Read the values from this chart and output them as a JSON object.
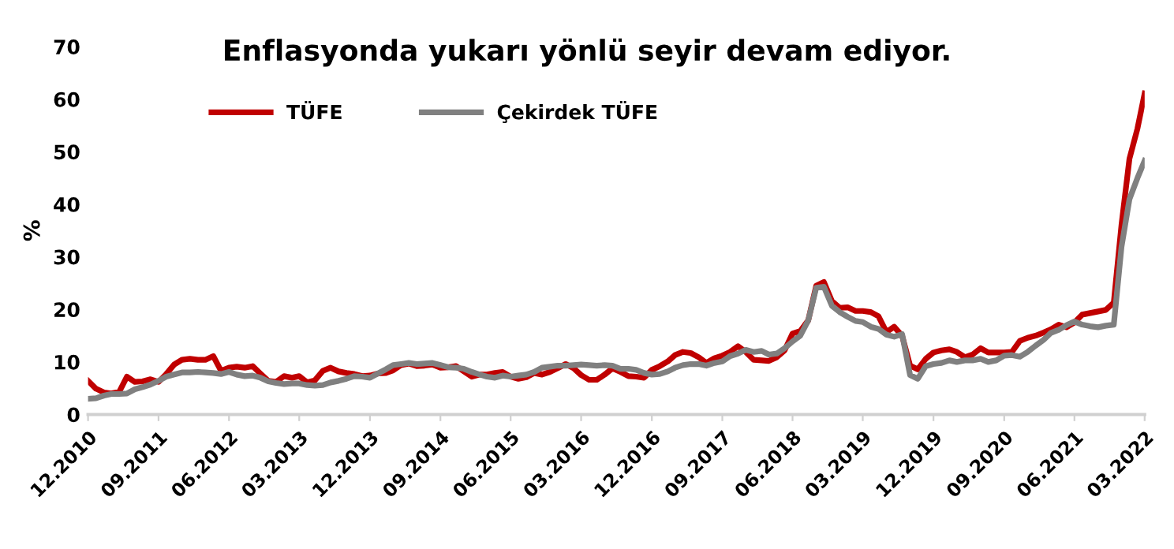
{
  "chart_data": {
    "type": "line",
    "title": "Enflasyonda yukarı yönlü seyir devam ediyor.",
    "ylabel": "%",
    "x": [
      "2010-12",
      "2011-01",
      "2011-02",
      "2011-03",
      "2011-04",
      "2011-05",
      "2011-06",
      "2011-07",
      "2011-08",
      "2011-09",
      "2011-10",
      "2011-11",
      "2011-12",
      "2012-01",
      "2012-02",
      "2012-03",
      "2012-04",
      "2012-05",
      "2012-06",
      "2012-07",
      "2012-08",
      "2012-09",
      "2012-10",
      "2012-11",
      "2012-12",
      "2013-01",
      "2013-02",
      "2013-03",
      "2013-04",
      "2013-05",
      "2013-06",
      "2013-07",
      "2013-08",
      "2013-09",
      "2013-10",
      "2013-11",
      "2013-12",
      "2014-01",
      "2014-02",
      "2014-03",
      "2014-04",
      "2014-05",
      "2014-06",
      "2014-07",
      "2014-08",
      "2014-09",
      "2014-10",
      "2014-11",
      "2014-12",
      "2015-01",
      "2015-02",
      "2015-03",
      "2015-04",
      "2015-05",
      "2015-06",
      "2015-07",
      "2015-08",
      "2015-09",
      "2015-10",
      "2015-11",
      "2015-12",
      "2016-01",
      "2016-02",
      "2016-03",
      "2016-04",
      "2016-05",
      "2016-06",
      "2016-07",
      "2016-08",
      "2016-09",
      "2016-10",
      "2016-11",
      "2016-12",
      "2017-01",
      "2017-02",
      "2017-03",
      "2017-04",
      "2017-05",
      "2017-06",
      "2017-07",
      "2017-08",
      "2017-09",
      "2017-10",
      "2017-11",
      "2017-12",
      "2018-01",
      "2018-02",
      "2018-03",
      "2018-04",
      "2018-05",
      "2018-06",
      "2018-07",
      "2018-08",
      "2018-09",
      "2018-10",
      "2018-11",
      "2018-12",
      "2019-01",
      "2019-02",
      "2019-03",
      "2019-04",
      "2019-05",
      "2019-06",
      "2019-07",
      "2019-08",
      "2019-09",
      "2019-10",
      "2019-11",
      "2019-12",
      "2020-01",
      "2020-02",
      "2020-03",
      "2020-04",
      "2020-05",
      "2020-06",
      "2020-07",
      "2020-08",
      "2020-09",
      "2020-10",
      "2020-11",
      "2020-12",
      "2021-01",
      "2021-02",
      "2021-03",
      "2021-04",
      "2021-05",
      "2021-06",
      "2021-07",
      "2021-08",
      "2021-09",
      "2021-10",
      "2021-11",
      "2021-12",
      "2022-01",
      "2022-02",
      "2022-03"
    ],
    "series": [
      {
        "name": "TÜFE",
        "color": "#c00000",
        "values": [
          6.4,
          4.9,
          4.2,
          4.0,
          4.3,
          7.2,
          6.2,
          6.3,
          6.7,
          6.2,
          7.7,
          9.5,
          10.4,
          10.6,
          10.4,
          10.4,
          11.1,
          8.3,
          8.9,
          9.1,
          8.9,
          9.2,
          7.8,
          6.4,
          6.2,
          7.3,
          7.0,
          7.3,
          6.1,
          6.5,
          8.3,
          8.9,
          8.2,
          7.9,
          7.7,
          7.3,
          7.4,
          7.8,
          7.9,
          8.4,
          9.4,
          9.7,
          9.2,
          9.3,
          9.5,
          8.9,
          9.0,
          9.2,
          8.2,
          7.2,
          7.6,
          7.6,
          7.9,
          8.1,
          7.2,
          6.8,
          7.1,
          7.9,
          7.6,
          8.1,
          8.8,
          9.6,
          8.8,
          7.5,
          6.6,
          6.6,
          7.6,
          8.8,
          8.1,
          7.3,
          7.2,
          7.0,
          8.5,
          9.2,
          10.1,
          11.3,
          11.9,
          11.7,
          10.9,
          9.8,
          10.7,
          11.2,
          11.9,
          13.0,
          11.9,
          10.4,
          10.3,
          10.2,
          10.9,
          12.2,
          15.4,
          15.9,
          17.9,
          24.5,
          25.2,
          21.6,
          20.3,
          20.4,
          19.7,
          19.7,
          19.5,
          18.7,
          15.7,
          16.7,
          15.0,
          9.3,
          8.6,
          10.6,
          11.8,
          12.2,
          12.4,
          11.9,
          10.9,
          11.4,
          12.6,
          11.8,
          11.8,
          11.8,
          11.9,
          14.0,
          14.6,
          15.0,
          15.6,
          16.2,
          17.1,
          16.6,
          17.5,
          19.0,
          19.3,
          19.6,
          19.9,
          21.3,
          36.1,
          48.7,
          54.4,
          61.1
        ]
      },
      {
        "name": "Çekirdek TÜFE",
        "color": "#808080",
        "values": [
          3.0,
          3.1,
          3.6,
          3.9,
          3.9,
          4.0,
          4.8,
          5.2,
          5.7,
          6.4,
          7.2,
          7.6,
          8.0,
          8.0,
          8.1,
          8.0,
          7.9,
          7.7,
          8.1,
          7.6,
          7.3,
          7.4,
          7.0,
          6.3,
          6.0,
          5.8,
          5.9,
          5.9,
          5.6,
          5.5,
          5.6,
          6.1,
          6.4,
          6.8,
          7.3,
          7.2,
          7.0,
          7.8,
          8.6,
          9.4,
          9.6,
          9.8,
          9.6,
          9.7,
          9.8,
          9.4,
          9.0,
          8.9,
          8.7,
          8.1,
          7.6,
          7.2,
          7.0,
          7.4,
          7.2,
          7.4,
          7.6,
          8.1,
          8.9,
          9.1,
          9.3,
          9.3,
          9.4,
          9.5,
          9.4,
          9.3,
          9.4,
          9.3,
          8.7,
          8.7,
          8.5,
          7.9,
          7.6,
          7.7,
          8.2,
          8.9,
          9.4,
          9.6,
          9.6,
          9.3,
          9.8,
          10.1,
          11.1,
          11.6,
          12.3,
          11.9,
          12.1,
          11.4,
          11.6,
          12.6,
          13.9,
          15.0,
          17.9,
          24.1,
          24.3,
          20.7,
          19.5,
          18.6,
          17.8,
          17.6,
          16.7,
          16.3,
          15.2,
          14.8,
          15.3,
          7.5,
          6.8,
          9.2,
          9.6,
          9.8,
          10.3,
          10.0,
          10.3,
          10.3,
          10.6,
          10.0,
          10.3,
          11.2,
          11.3,
          11.0,
          11.9,
          13.1,
          14.2,
          15.5,
          16.1,
          17.0,
          17.7,
          17.1,
          16.8,
          16.6,
          16.9,
          17.1,
          31.9,
          41.0,
          45.0,
          48.3
        ]
      }
    ],
    "xlim": [
      "2010-12",
      "2022-03"
    ],
    "xticks": [
      {
        "value": "2010-12",
        "label": "12.2010"
      },
      {
        "value": "2011-09",
        "label": "09.2011"
      },
      {
        "value": "2012-06",
        "label": "06.2012"
      },
      {
        "value": "2013-03",
        "label": "03.2013"
      },
      {
        "value": "2013-12",
        "label": "12.2013"
      },
      {
        "value": "2014-09",
        "label": "09.2014"
      },
      {
        "value": "2015-06",
        "label": "06.2015"
      },
      {
        "value": "2016-03",
        "label": "03.2016"
      },
      {
        "value": "2016-12",
        "label": "12.2016"
      },
      {
        "value": "2017-09",
        "label": "09.2017"
      },
      {
        "value": "2018-06",
        "label": "06.2018"
      },
      {
        "value": "2019-03",
        "label": "03.2019"
      },
      {
        "value": "2019-12",
        "label": "12.2019"
      },
      {
        "value": "2020-09",
        "label": "09.2020"
      },
      {
        "value": "2021-06",
        "label": "06.2021"
      },
      {
        "value": "2022-03",
        "label": "03.2022"
      }
    ],
    "ylim": [
      0,
      70
    ],
    "yticks": [
      0,
      10,
      20,
      30,
      40,
      50,
      60,
      70
    ],
    "legend": "top left",
    "grid": false,
    "marker": "none",
    "line_style": "solid"
  }
}
